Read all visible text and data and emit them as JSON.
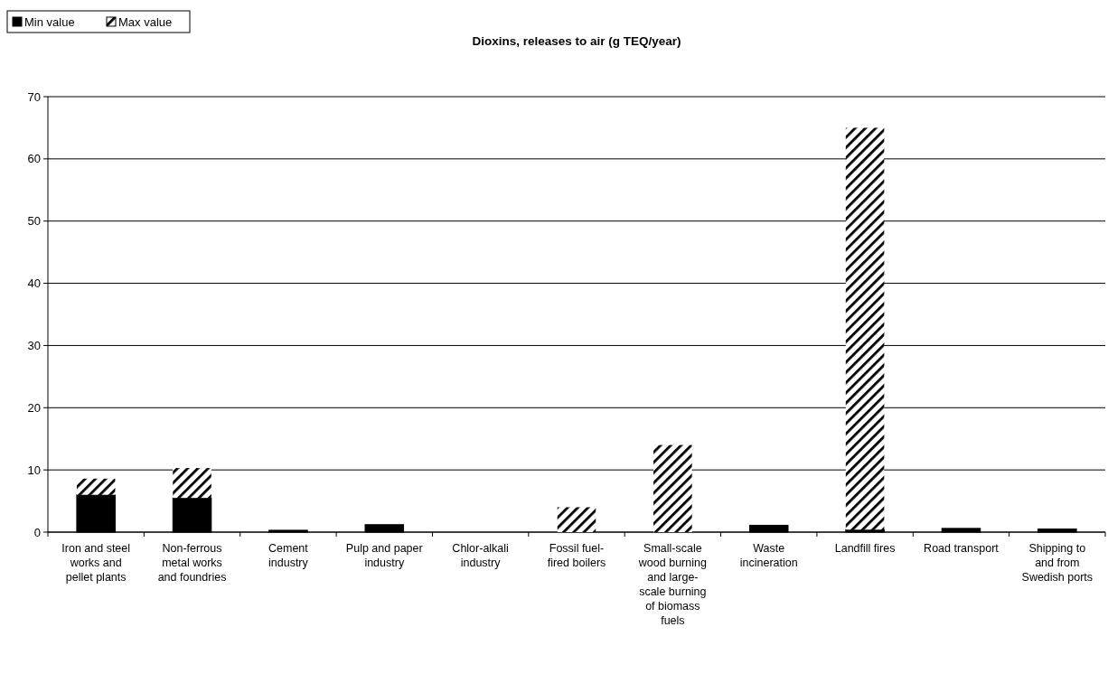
{
  "chart_data": {
    "type": "bar",
    "title": "Dioxins, releases to air (g TEQ/year)",
    "stacked": true,
    "legend": "top left",
    "grid": "y",
    "categories": [
      "Iron and steel works and pellet plants",
      "Non-ferrous metal works and foundries",
      "Cement industry",
      "Pulp and paper industry",
      "Chlor-alkali industry",
      "Fossil fuel-fired boilers",
      "Small-scale wood burning and large-scale burning of biomass fuels",
      "Waste incineration",
      "Landfill fires",
      "Road transport",
      "Shipping to and from Swedish ports"
    ],
    "series": [
      {
        "name": "Min value",
        "color": "#000000",
        "values": [
          6.0,
          5.5,
          0.3,
          1.2,
          0,
          0,
          0,
          1.1,
          0.4,
          0.6,
          0.5
        ]
      },
      {
        "name": "Max value",
        "color": "#ffffff",
        "values": [
          2.6,
          4.8,
          0,
          0,
          0,
          4.0,
          14,
          0,
          64.6,
          0,
          0
        ]
      }
    ],
    "ylim": [
      0,
      70
    ],
    "yticks": [
      0,
      10,
      20,
      30,
      40,
      50,
      60,
      70
    ]
  }
}
